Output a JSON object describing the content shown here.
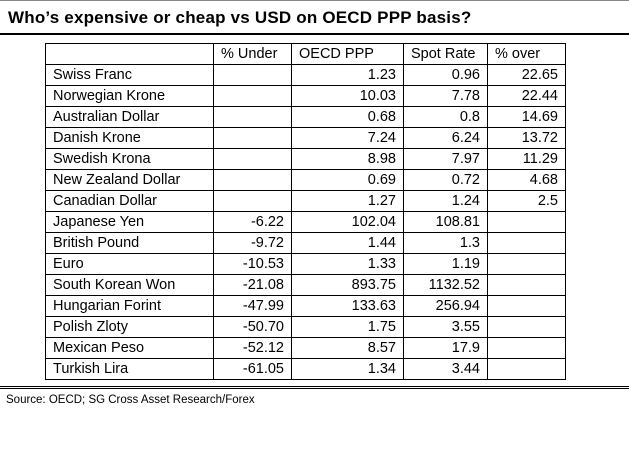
{
  "title": "Who’s expensive or cheap vs USD on OECD PPP basis?",
  "source": "Source: OECD; SG Cross Asset Research/Forex",
  "colors": {
    "background": "#ffffff",
    "text": "#000000",
    "border": "#000000"
  },
  "chart_data": {
    "type": "table",
    "title": "Who’s expensive or cheap vs USD on OECD PPP basis?",
    "columns": [
      "",
      "% Under",
      "OECD PPP",
      "Spot Rate",
      "% over"
    ],
    "rows": [
      [
        "Swiss Franc",
        "",
        "1.23",
        "0.96",
        "22.65"
      ],
      [
        "Norwegian Krone",
        "",
        "10.03",
        "7.78",
        "22.44"
      ],
      [
        "Australian Dollar",
        "",
        "0.68",
        "0.8",
        "14.69"
      ],
      [
        "Danish Krone",
        "",
        "7.24",
        "6.24",
        "13.72"
      ],
      [
        "Swedish Krona",
        "",
        "8.98",
        "7.97",
        "11.29"
      ],
      [
        "New Zealand Dollar",
        "",
        "0.69",
        "0.72",
        "4.68"
      ],
      [
        "Canadian Dollar",
        "",
        "1.27",
        "1.24",
        "2.5"
      ],
      [
        "Japanese Yen",
        "-6.22",
        "102.04",
        "108.81",
        ""
      ],
      [
        "British Pound",
        "-9.72",
        "1.44",
        "1.3",
        ""
      ],
      [
        "Euro",
        "-10.53",
        "1.33",
        "1.19",
        ""
      ],
      [
        "South Korean Won",
        "-21.08",
        "893.75",
        "1132.52",
        ""
      ],
      [
        "Hungarian Forint",
        "-47.99",
        "133.63",
        "256.94",
        ""
      ],
      [
        "Polish Zloty",
        "-50.70",
        "1.75",
        "3.55",
        ""
      ],
      [
        "Mexican Peso",
        "-52.12",
        "8.57",
        "17.9",
        ""
      ],
      [
        "Turkish Lira",
        "-61.05",
        "1.34",
        "3.44",
        ""
      ]
    ],
    "legend": "none",
    "grid": "full cell borders"
  }
}
